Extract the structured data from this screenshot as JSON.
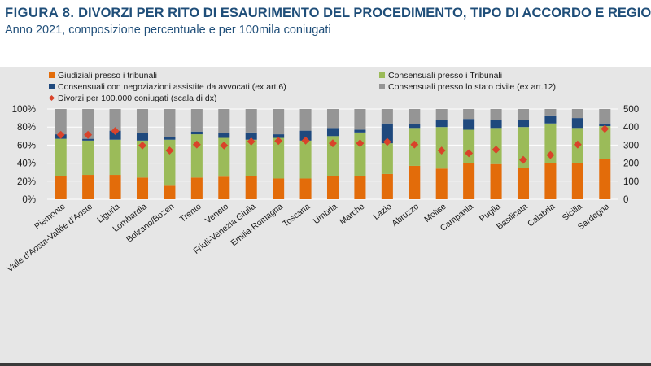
{
  "header": {
    "figure_number": "FIGURA 8.",
    "title": "DIVORZI PER RITO DI ESAURIMENTO DEL PROCEDIMENTO, TIPO DI ACCORDO E REGIONE.",
    "subtitle": "Anno 2021, composizione percentuale e per 100mila coniugati"
  },
  "colors": {
    "giudiziali": "#e36c0a",
    "consensuali_tribunali": "#9bbb59",
    "negoziazioni": "#1f497d",
    "stato_civile": "#959595",
    "marker": "#d9432a",
    "grid": "#ffffff",
    "axis_text": "#1a1a1a"
  },
  "chart_data": {
    "type": "bar",
    "stacked": true,
    "title": "",
    "xlabel": "",
    "ylabel": "",
    "ylim": [
      0,
      100
    ],
    "y2lim": [
      0,
      500
    ],
    "yticks": [
      "0%",
      "20%",
      "40%",
      "60%",
      "80%",
      "100%"
    ],
    "y2ticks": [
      "0",
      "100",
      "200",
      "300",
      "400",
      "500"
    ],
    "categories": [
      "Piemonte",
      "Valle d'Aosta-Vallée d'Aoste",
      "Liguria",
      "Lombardia",
      "Bolzano/Bozen",
      "Trento",
      "Veneto",
      "Friuli-Venezia Giulia",
      "Emilia-Romagna",
      "Toscana",
      "Umbria",
      "Marche",
      "Lazio",
      "Abruzzo",
      "Molise",
      "Campania",
      "Puglia",
      "Basilicata",
      "Calabria",
      "Sicilia",
      "Sardegna"
    ],
    "series": [
      {
        "name": "Giudiziali presso i tribunali",
        "key": "giudiziali",
        "values": [
          26,
          27,
          27,
          24,
          15,
          24,
          25,
          26,
          23,
          23,
          26,
          26,
          28,
          37,
          34,
          40,
          39,
          35,
          40,
          40,
          45
        ]
      },
      {
        "name": "Consensuali presso i Tribunali",
        "key": "consensuali_tribunali",
        "values": [
          41,
          38,
          39,
          41,
          51,
          48,
          43,
          40,
          45,
          42,
          44,
          48,
          34,
          42,
          46,
          37,
          40,
          45,
          44,
          39,
          36
        ]
      },
      {
        "name": "Consensuali con negoziazioni assistite da avvocati (ex art.6)",
        "key": "negoziazioni",
        "values": [
          5,
          2,
          10,
          8,
          3,
          3,
          5,
          8,
          4,
          11,
          9,
          3,
          22,
          4,
          8,
          12,
          9,
          8,
          8,
          11,
          3
        ]
      },
      {
        "name": "Consensuali presso lo stato civile (ex art.12)",
        "key": "stato_civile",
        "values": [
          28,
          33,
          24,
          27,
          31,
          25,
          27,
          26,
          28,
          24,
          21,
          23,
          16,
          17,
          12,
          11,
          12,
          12,
          8,
          10,
          16
        ]
      }
    ],
    "line_series": {
      "name": "Divorzi per 100.000 coniugati (scala di dx)",
      "axis": "right",
      "values": [
        357,
        357,
        378,
        298,
        270,
        303,
        298,
        320,
        323,
        325,
        310,
        310,
        318,
        303,
        270,
        255,
        275,
        218,
        245,
        303,
        390
      ]
    },
    "legend": {
      "position": "top"
    }
  }
}
